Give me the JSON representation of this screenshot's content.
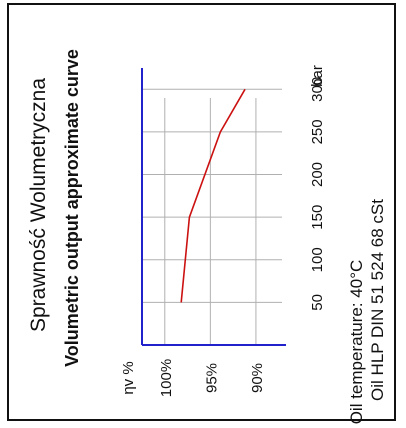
{
  "chart_data": {
    "type": "line",
    "title": "Sprawność Wolumetryczna",
    "subtitle": "Volumetric output approximate curve",
    "xlabel": "",
    "ylabel": "ηv %",
    "x_unit": "bar",
    "x_ticks": [
      50,
      100,
      150,
      200,
      250,
      300
    ],
    "y_ticks": [
      100,
      95,
      90
    ],
    "y_tick_labels": [
      "100%",
      "95%",
      "90%"
    ],
    "xlim": [
      0,
      325
    ],
    "ylim": [
      102.5,
      86.7
    ],
    "grid": true,
    "series": [
      {
        "x": [
          50,
          150,
          250,
          300
        ],
        "y": [
          98.2,
          97.3,
          93.9,
          91.2
        ]
      }
    ],
    "colors": {
      "curve": "#cc1111",
      "axes": "#2222cc",
      "grid": "#b0b0b0",
      "frame": "#111111"
    },
    "notes": [
      "Oil temperature: 40°C",
      "Oil HLP  DIN 51 524  68 cSt"
    ]
  }
}
